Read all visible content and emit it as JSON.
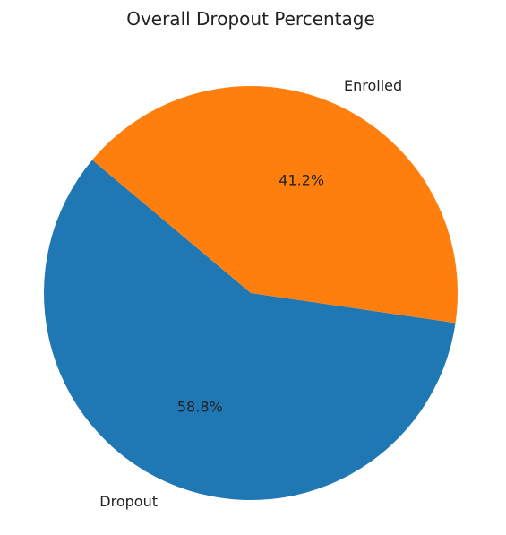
{
  "chart_data": {
    "type": "pie",
    "title": "Overall Dropout Percentage",
    "slices": [
      {
        "label": "Dropout",
        "percent_label": "58.8%",
        "value": 58.8,
        "color": "#1f77b4"
      },
      {
        "label": "Enrolled",
        "percent_label": "41.2%",
        "value": 41.2,
        "color": "#ff7f0e"
      }
    ],
    "start_angle_deg": 140,
    "direction": "counterclockwise",
    "legend": "none"
  }
}
